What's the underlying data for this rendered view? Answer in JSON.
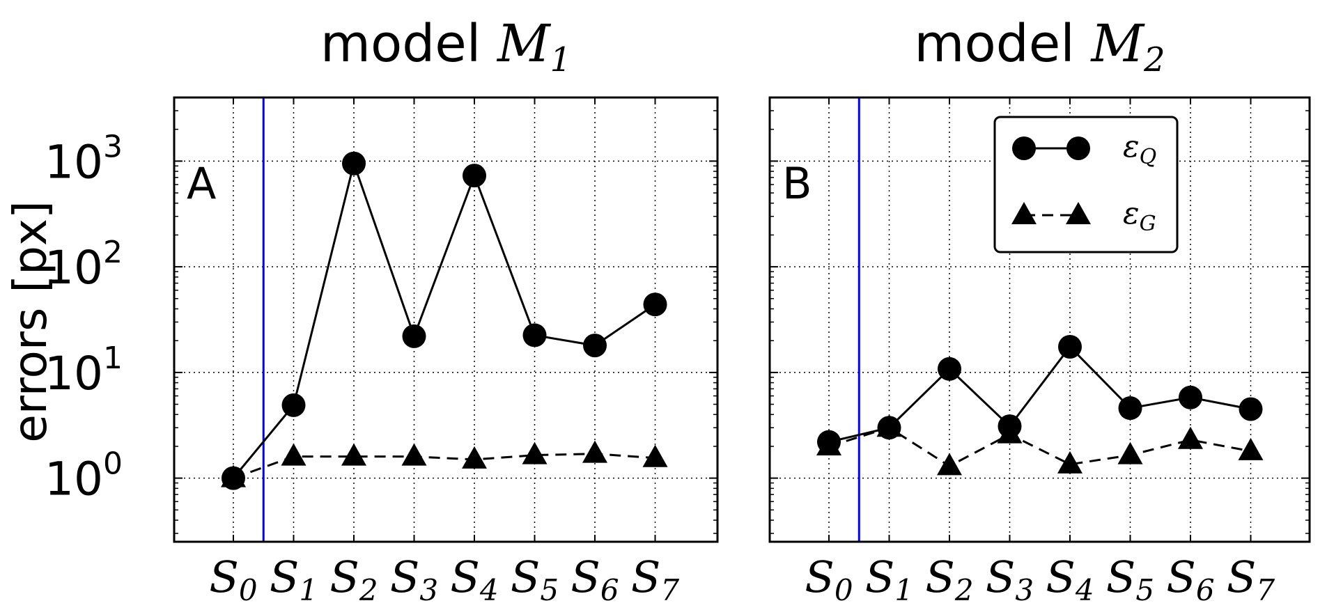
{
  "ylabel": "errors [px]",
  "y_axis": {
    "scale": "log",
    "ylim": [
      0.25,
      4000
    ],
    "ticks": [
      {
        "value": 1,
        "base": "10",
        "exp": "0"
      },
      {
        "value": 10,
        "base": "10",
        "exp": "1"
      },
      {
        "value": 100,
        "base": "10",
        "exp": "2"
      },
      {
        "value": 1000,
        "base": "10",
        "exp": "3"
      }
    ]
  },
  "categories": [
    {
      "base": "S",
      "sub": "0"
    },
    {
      "base": "S",
      "sub": "1"
    },
    {
      "base": "S",
      "sub": "2"
    },
    {
      "base": "S",
      "sub": "3"
    },
    {
      "base": "S",
      "sub": "4"
    },
    {
      "base": "S",
      "sub": "5"
    },
    {
      "base": "S",
      "sub": "6"
    },
    {
      "base": "S",
      "sub": "7"
    }
  ],
  "legend": {
    "location": "top-right of panel B",
    "entries": [
      {
        "symbol": "ε",
        "sub": "Q",
        "marker": "circle",
        "linestyle": "solid"
      },
      {
        "symbol": "ε",
        "sub": "G",
        "marker": "triangle",
        "linestyle": "dashed"
      }
    ]
  },
  "colors": {
    "series": "#000000",
    "separator_line": "#0000ff",
    "grid": "#000000",
    "background": "#ffffff"
  },
  "chart_data": [
    {
      "type": "line",
      "title_text": "model ",
      "title_math": {
        "base": "M",
        "sub": "1"
      },
      "panel_label": "A",
      "yscale": "log",
      "grid": true,
      "x_index": [
        0,
        1,
        2,
        3,
        4,
        5,
        6,
        7
      ],
      "vertical_line_x": 0.5,
      "series": [
        {
          "name": "ε_Q",
          "marker": "circle",
          "linestyle": "solid",
          "values": [
            1.0,
            4.9,
            950,
            22,
            730,
            22.5,
            18,
            44
          ]
        },
        {
          "name": "ε_G",
          "marker": "triangle",
          "linestyle": "dashed",
          "values": [
            1.0,
            1.6,
            1.6,
            1.6,
            1.5,
            1.65,
            1.7,
            1.55
          ]
        }
      ]
    },
    {
      "type": "line",
      "title_text": "model ",
      "title_math": {
        "base": "M",
        "sub": "2"
      },
      "panel_label": "B",
      "yscale": "log",
      "grid": true,
      "x_index": [
        0,
        1,
        2,
        3,
        4,
        5,
        6,
        7
      ],
      "vertical_line_x": 0.5,
      "series": [
        {
          "name": "ε_Q",
          "marker": "circle",
          "linestyle": "solid",
          "values": [
            2.2,
            3.0,
            10.8,
            3.1,
            17.5,
            4.6,
            5.8,
            4.5
          ]
        },
        {
          "name": "ε_G",
          "marker": "triangle",
          "linestyle": "dashed",
          "values": [
            2.0,
            3.0,
            1.3,
            2.6,
            1.35,
            1.65,
            2.3,
            1.8
          ]
        }
      ]
    }
  ]
}
